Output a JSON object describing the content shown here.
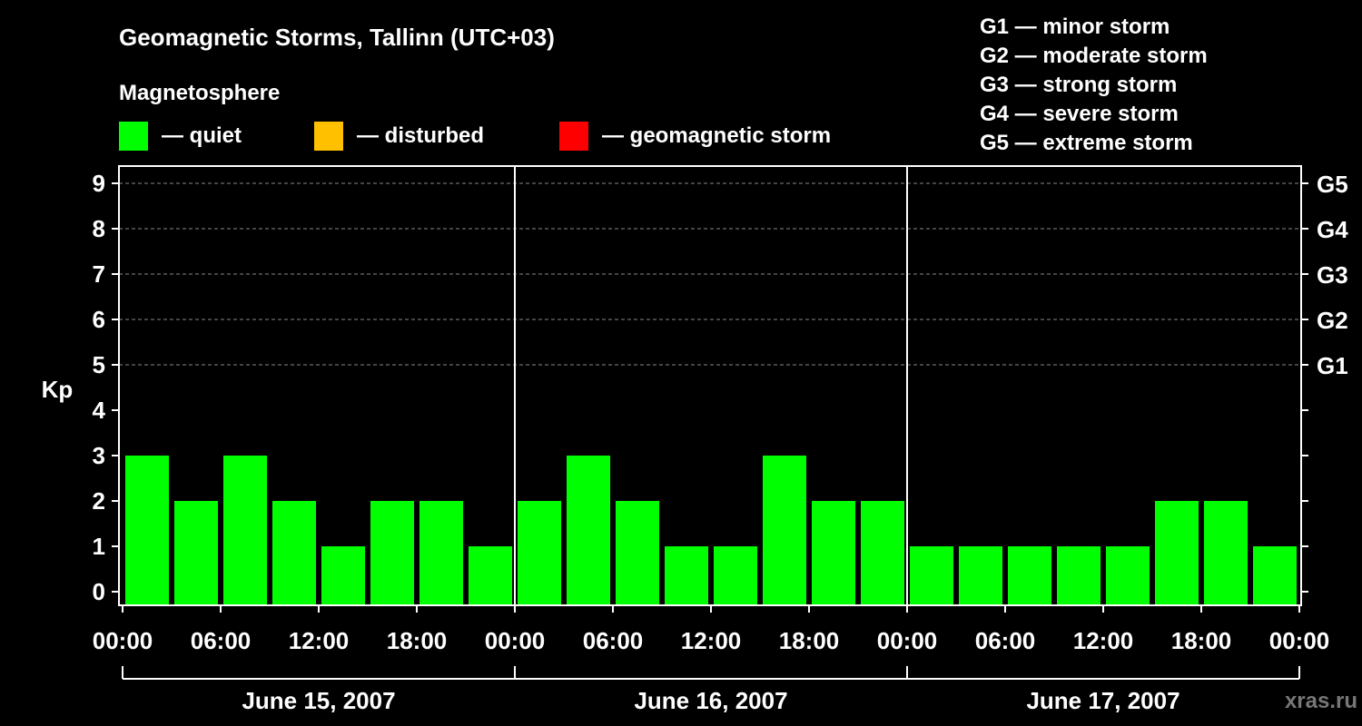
{
  "chart_data": {
    "type": "bar",
    "title": "Geomagnetic Storms, Tallinn (UTC+03)",
    "subtitle": "Magnetosphere",
    "ylabel": "Kp",
    "ylim": [
      0,
      9
    ],
    "yticks": [
      "0",
      "1",
      "2",
      "3",
      "4",
      "5",
      "6",
      "7",
      "8",
      "9"
    ],
    "right_ticks": [
      {
        "kp": 5,
        "label": "G1"
      },
      {
        "kp": 6,
        "label": "G2"
      },
      {
        "kp": 7,
        "label": "G3"
      },
      {
        "kp": 8,
        "label": "G4"
      },
      {
        "kp": 9,
        "label": "G5"
      }
    ],
    "grid": true,
    "legend": [
      {
        "label": "— quiet",
        "color": "#00ff00"
      },
      {
        "label": "— disturbed",
        "color": "#ffc000"
      },
      {
        "label": "— geomagnetic storm",
        "color": "#ff0000"
      }
    ],
    "scale_legend": [
      "G1 — minor storm",
      "G2 — moderate storm",
      "G3 — strong storm",
      "G4 — severe storm",
      "G5 — extreme storm"
    ],
    "xtick_labels": [
      "00:00",
      "06:00",
      "12:00",
      "18:00",
      "00:00",
      "06:00",
      "12:00",
      "18:00",
      "00:00",
      "06:00",
      "12:00",
      "18:00",
      "00:00"
    ],
    "days": [
      {
        "label": "June 15, 2007",
        "values": [
          3,
          2,
          3,
          2,
          1,
          2,
          2,
          1
        ]
      },
      {
        "label": "June 16, 2007",
        "values": [
          2,
          3,
          2,
          1,
          1,
          3,
          2,
          2
        ]
      },
      {
        "label": "June 17, 2007",
        "values": [
          1,
          1,
          1,
          1,
          1,
          2,
          2,
          1
        ]
      }
    ]
  },
  "watermark": "xras.ru"
}
